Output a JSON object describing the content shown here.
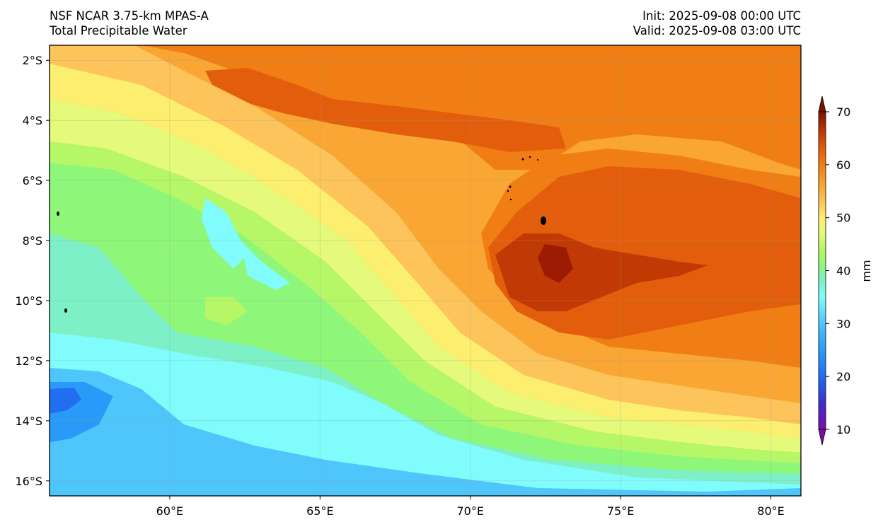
{
  "header": {
    "model": "NSF NCAR 3.75-km MPAS-A",
    "field": "Total Precipitable Water",
    "init": "Init: 2025-09-08 00:00 UTC",
    "valid": "Valid: 2025-09-08 03:00 UTC"
  },
  "map": {
    "lon_range": [
      56.0,
      81.0
    ],
    "lat_range": [
      -16.5,
      -1.5
    ],
    "lon_ticks": [
      {
        "value": 60,
        "label": "60°E"
      },
      {
        "value": 65,
        "label": "65°E"
      },
      {
        "value": 70,
        "label": "70°E"
      },
      {
        "value": 75,
        "label": "75°E"
      },
      {
        "value": 80,
        "label": "80°E"
      }
    ],
    "lat_ticks": [
      {
        "value": -2,
        "label": "2°S"
      },
      {
        "value": -4,
        "label": "4°S"
      },
      {
        "value": -6,
        "label": "6°S"
      },
      {
        "value": -8,
        "label": "8°S"
      },
      {
        "value": -10,
        "label": "10°S"
      },
      {
        "value": -12,
        "label": "12°S"
      },
      {
        "value": -14,
        "label": "14°S"
      },
      {
        "value": -16,
        "label": "16°S"
      }
    ],
    "gridlines": true
  },
  "colorbar": {
    "label": "mm",
    "range": [
      10,
      70
    ],
    "ticks": [
      {
        "value": 10,
        "label": "10"
      },
      {
        "value": 20,
        "label": "20"
      },
      {
        "value": 30,
        "label": "30"
      },
      {
        "value": 40,
        "label": "40"
      },
      {
        "value": 50,
        "label": "50"
      },
      {
        "value": 60,
        "label": "60"
      },
      {
        "value": 70,
        "label": "70"
      }
    ],
    "extend": "both",
    "colors": [
      {
        "v": 10,
        "c": "#7a0fa8"
      },
      {
        "v": 15,
        "c": "#3e2ecc"
      },
      {
        "v": 20,
        "c": "#1f6ff0"
      },
      {
        "v": 25,
        "c": "#2a9af8"
      },
      {
        "v": 30,
        "c": "#4ec6fb"
      },
      {
        "v": 35,
        "c": "#80fcfc"
      },
      {
        "v": 38,
        "c": "#7ef0c8"
      },
      {
        "v": 41,
        "c": "#8ef77a"
      },
      {
        "v": 44,
        "c": "#b6f767"
      },
      {
        "v": 47,
        "c": "#e5f97b"
      },
      {
        "v": 50,
        "c": "#fcee6e"
      },
      {
        "v": 53,
        "c": "#fcc45a"
      },
      {
        "v": 56,
        "c": "#f9a634"
      },
      {
        "v": 60,
        "c": "#f07e14"
      },
      {
        "v": 63,
        "c": "#e25e0c"
      },
      {
        "v": 66,
        "c": "#c13a05"
      },
      {
        "v": 70,
        "c": "#7b1202"
      }
    ]
  },
  "features": {
    "island_color": "#000000",
    "land_outline": "black"
  }
}
